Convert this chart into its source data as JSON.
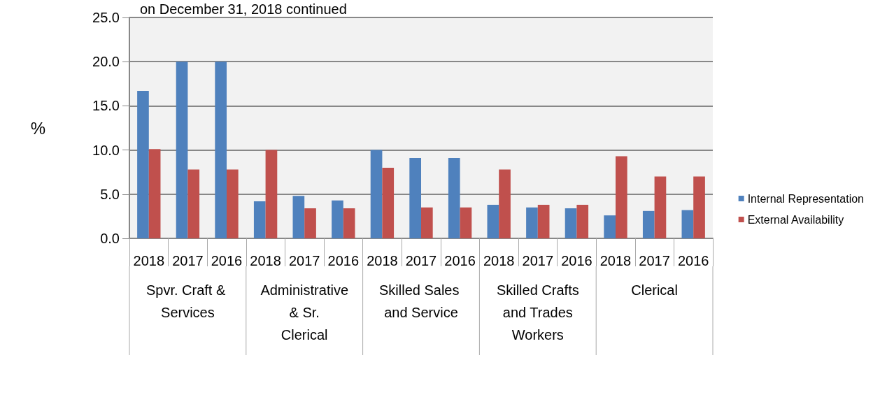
{
  "chart_data": {
    "type": "bar",
    "title": "on December 31, 2018 continued",
    "ylabel": "%",
    "categories": [
      "2018",
      "2017",
      "2016",
      "2018",
      "2017",
      "2016",
      "2018",
      "2017",
      "2016",
      "2018",
      "2017",
      "2016",
      "2018",
      "2017",
      "2016"
    ],
    "annotations": [
      "Spvr. Craft & Services",
      "Administrative & Sr. Clerical",
      "Skilled Sales and Service",
      "Skilled Crafts and Trades Workers",
      "Clerical"
    ],
    "series": [
      {
        "name": "Internal Representation",
        "color": "#4f81bd",
        "values": [
          16.7,
          20.0,
          20.0,
          4.2,
          4.8,
          4.3,
          10.0,
          9.1,
          9.1,
          3.8,
          3.5,
          3.4,
          2.6,
          3.1,
          3.2
        ]
      },
      {
        "name": "External Availability",
        "color": "#c0504d",
        "values": [
          10.1,
          7.8,
          7.8,
          10.0,
          3.4,
          3.4,
          8.0,
          3.5,
          3.5,
          7.8,
          3.8,
          3.8,
          9.3,
          7.0,
          7.0
        ]
      }
    ],
    "ylim": [
      0,
      25
    ],
    "yticks": [
      {
        "value": 0,
        "label": "0.0"
      },
      {
        "value": 5,
        "label": "5.0"
      },
      {
        "value": 10,
        "label": "10.0"
      },
      {
        "value": 15,
        "label": "15.0"
      },
      {
        "value": 20,
        "label": "20.0"
      },
      {
        "value": 25,
        "label": "25.0"
      }
    ],
    "grid": "y",
    "legend": "right"
  }
}
